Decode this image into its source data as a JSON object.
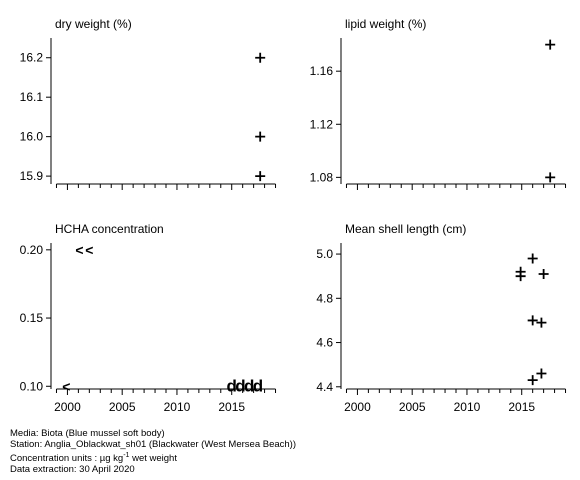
{
  "chart_data": [
    {
      "type": "scatter",
      "title": "dry weight (%)",
      "ylim": [
        15.88,
        16.25
      ],
      "yticks": [
        "15.9",
        "16.0",
        "16.1",
        "16.2"
      ],
      "xlim": [
        1998.5,
        2019.5
      ],
      "points": [
        {
          "x": 2017.6,
          "y": 16.2,
          "marker": "+"
        },
        {
          "x": 2017.6,
          "y": 16.0,
          "marker": "+"
        },
        {
          "x": 2017.6,
          "y": 15.9,
          "marker": "+"
        }
      ]
    },
    {
      "type": "scatter",
      "title": "lipid weight (%)",
      "ylim": [
        1.075,
        1.185
      ],
      "yticks": [
        "1.08",
        "1.12",
        "1.16"
      ],
      "xlim": [
        1998.5,
        2019.5
      ],
      "points": [
        {
          "x": 2017.6,
          "y": 1.18,
          "marker": "+"
        },
        {
          "x": 2017.6,
          "y": 1.08,
          "marker": "+"
        }
      ]
    },
    {
      "type": "scatter",
      "title": "HCHA concentration",
      "ylim": [
        0.098,
        0.205
      ],
      "yticks": [
        "0.10",
        "0.15",
        "0.20"
      ],
      "xticks": [
        "2000",
        "2005",
        "2010",
        "2015"
      ],
      "xlim": [
        1998.5,
        2019.5
      ],
      "points": [
        {
          "x": 2001.1,
          "y": 0.2,
          "marker": "<"
        },
        {
          "x": 2002.0,
          "y": 0.2,
          "marker": "<"
        },
        {
          "x": 1999.9,
          "y": 0.1,
          "marker": "<"
        },
        {
          "x": 2015.0,
          "y": 0.1,
          "marker": "d"
        },
        {
          "x": 2015.8,
          "y": 0.1,
          "marker": "d"
        },
        {
          "x": 2016.6,
          "y": 0.1,
          "marker": "d"
        },
        {
          "x": 2017.4,
          "y": 0.1,
          "marker": "d"
        }
      ]
    },
    {
      "type": "scatter",
      "title": "Mean shell length (cm)",
      "ylim": [
        4.39,
        5.05
      ],
      "yticks": [
        "4.4",
        "4.6",
        "4.8",
        "5.0"
      ],
      "xticks": [
        "2000",
        "2005",
        "2010",
        "2015"
      ],
      "xlim": [
        1998.5,
        2019.5
      ],
      "points": [
        {
          "x": 2014.9,
          "y": 4.92,
          "marker": "+"
        },
        {
          "x": 2014.9,
          "y": 4.9,
          "marker": "+"
        },
        {
          "x": 2016.0,
          "y": 4.98,
          "marker": "+"
        },
        {
          "x": 2017.0,
          "y": 4.91,
          "marker": "+"
        },
        {
          "x": 2016.0,
          "y": 4.7,
          "marker": "+"
        },
        {
          "x": 2016.8,
          "y": 4.69,
          "marker": "+"
        },
        {
          "x": 2016.0,
          "y": 4.43,
          "marker": "+"
        },
        {
          "x": 2016.8,
          "y": 4.46,
          "marker": "+"
        }
      ]
    }
  ],
  "footer": {
    "media": "Media: Biota (Blue mussel soft body)",
    "station": "Station: Anglia_Oblackwat_sh01 (Blackwater (West Mersea Beach))",
    "units_prefix": "Concentration units : µg kg",
    "units_sup": "-1",
    "units_suffix": " wet weight",
    "extraction": "Data extraction: 30 April 2020"
  }
}
